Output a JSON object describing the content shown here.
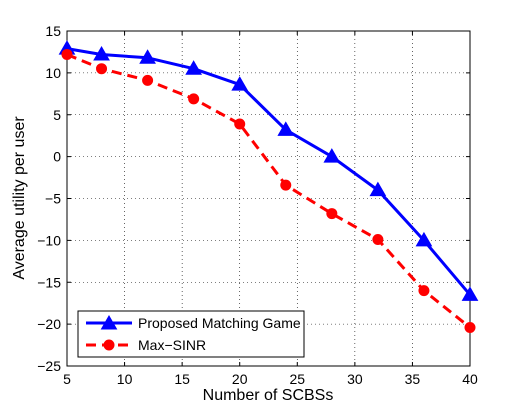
{
  "chart_data": {
    "type": "line",
    "title": "",
    "xlabel": "Number of SCBSs",
    "ylabel": "Average utility per user",
    "xlim": [
      5,
      40
    ],
    "ylim": [
      -25,
      15
    ],
    "xticks": [
      5,
      10,
      15,
      20,
      25,
      30,
      35,
      40
    ],
    "yticks": [
      15,
      10,
      5,
      0,
      -5,
      -10,
      -15,
      -20,
      -25
    ],
    "xtick_labels": [
      "5",
      "10",
      "15",
      "20",
      "25",
      "30",
      "35",
      "40"
    ],
    "ytick_labels": [
      "15",
      "10",
      "5",
      "0",
      "−5",
      "−10",
      "−15",
      "−20",
      "−25"
    ],
    "grid": true,
    "legend_position": "bottom-left",
    "x": [
      5,
      8,
      12,
      16,
      20,
      24,
      28,
      32,
      36,
      40
    ],
    "series": [
      {
        "name": "Proposed Matching Game",
        "color": "#0000ff",
        "line_style": "solid",
        "marker": "triangle",
        "values": [
          12.9,
          12.2,
          11.8,
          10.5,
          8.6,
          3.2,
          0.0,
          -4.0,
          -10.0,
          -16.5
        ]
      },
      {
        "name": "Max−SINR",
        "color": "#ff0000",
        "line_style": "dashed",
        "marker": "circle",
        "values": [
          12.2,
          10.5,
          9.1,
          6.9,
          3.9,
          -3.4,
          -6.8,
          -9.9,
          -16.0,
          -20.4
        ]
      }
    ]
  }
}
